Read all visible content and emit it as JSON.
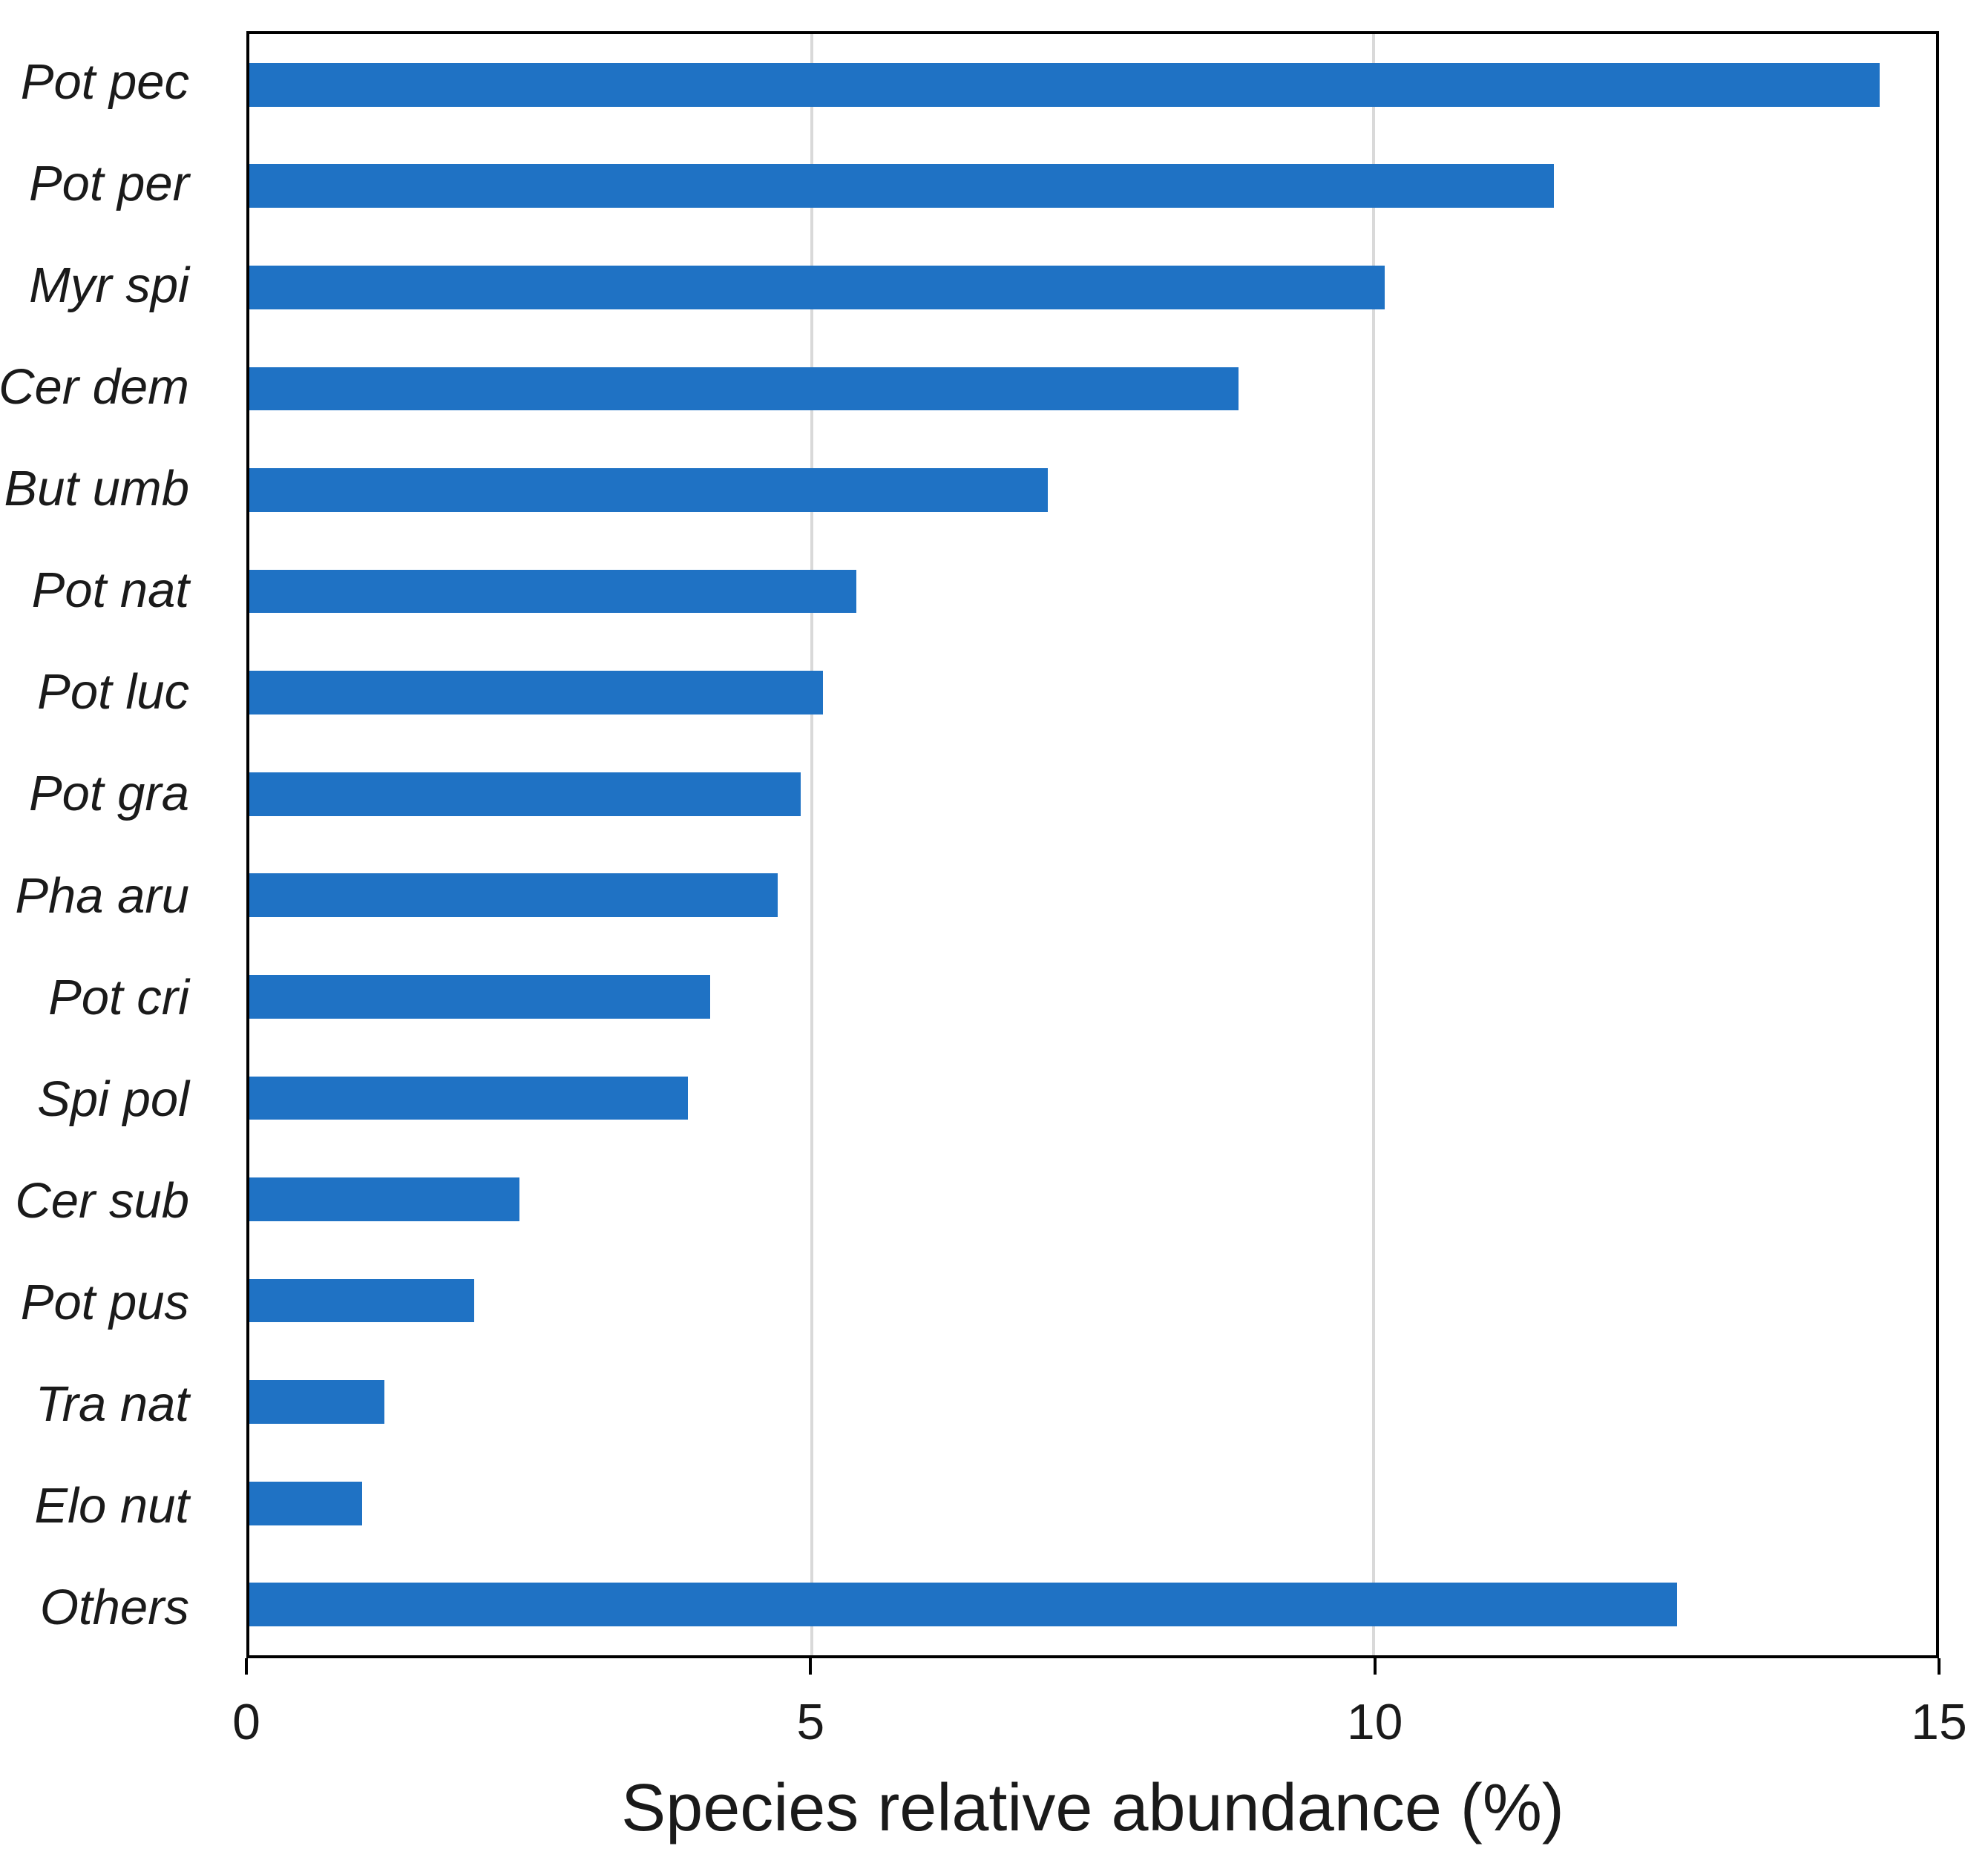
{
  "chart_data": {
    "type": "bar",
    "orientation": "horizontal",
    "title": "",
    "xlabel": "Species relative abundance (%)",
    "ylabel": "",
    "xlim": [
      0,
      15
    ],
    "x_ticks": [
      0,
      5,
      10,
      15
    ],
    "x_tick_labels": [
      "0",
      "5",
      "10",
      "15"
    ],
    "gridlines_at": [
      5,
      10
    ],
    "grid": "vertical",
    "legend": "none",
    "category_label_style": "italic",
    "categories": [
      "Pot pec",
      "Pot per",
      "Myr spi",
      "Cer dem",
      "But umb",
      "Pot nat",
      "Pot luc",
      "Pot gra",
      "Pha aru",
      "Pot cri",
      "Spi pol",
      "Cer sub",
      "Pot pus",
      "Tra nat",
      "Elo nut",
      "Others"
    ],
    "values": [
      14.5,
      11.6,
      10.1,
      8.8,
      7.1,
      5.4,
      5.1,
      4.9,
      4.7,
      4.1,
      3.9,
      2.4,
      2.0,
      1.2,
      1.0,
      12.7
    ],
    "colors": {
      "bar": "#1F72C4",
      "gridline": "#D9D9D9",
      "axis": "#000000",
      "text": "#1A1A1A",
      "background": "#FFFFFF"
    }
  }
}
